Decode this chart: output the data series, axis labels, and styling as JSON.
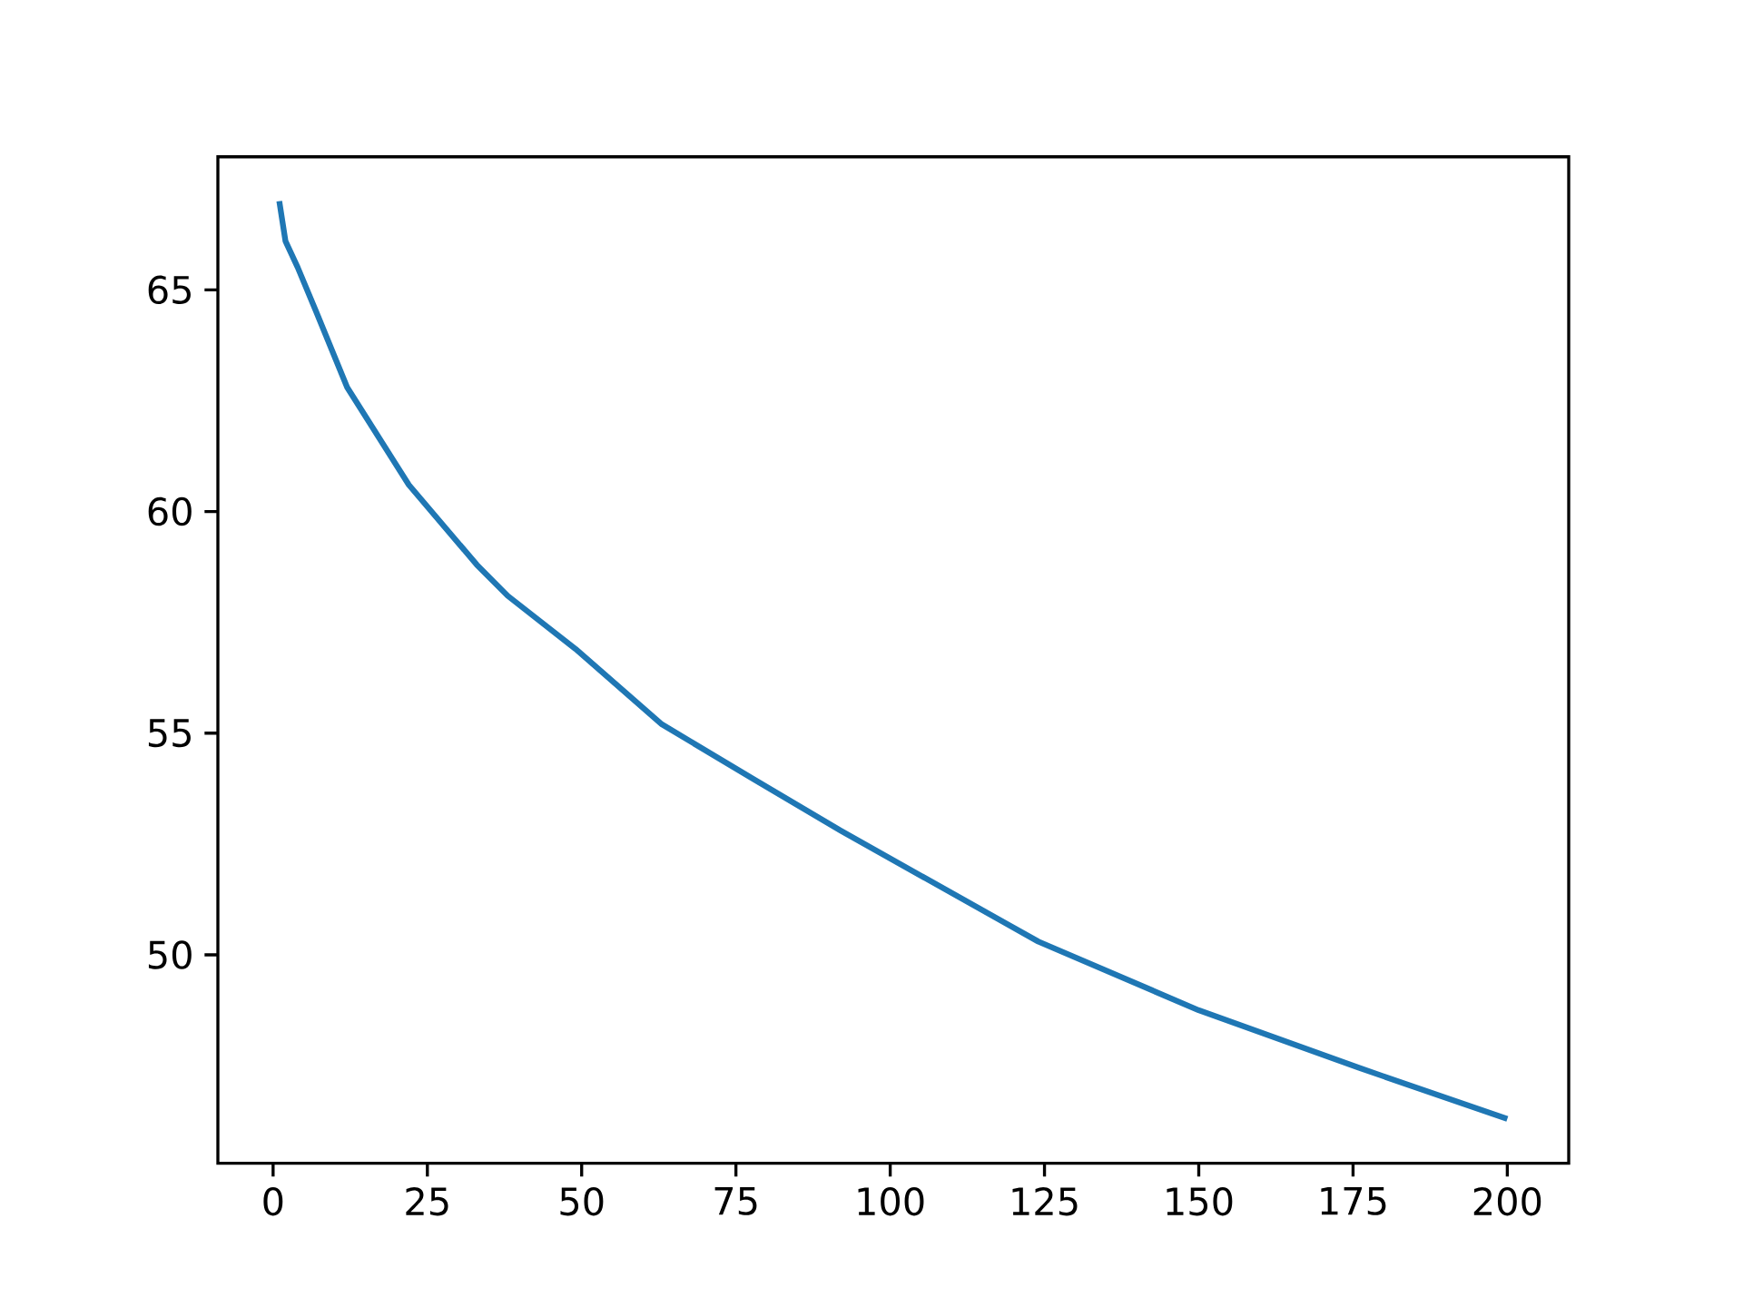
{
  "chart_data": {
    "type": "line",
    "x": [
      1,
      2,
      4,
      7,
      12,
      22,
      33,
      38,
      49,
      63,
      78,
      92,
      124,
      150,
      176,
      200
    ],
    "series": [
      {
        "color": "#1f77b4",
        "values": [
          67.0,
          66.1,
          65.5,
          64.5,
          62.8,
          60.6,
          58.8,
          58.1,
          56.9,
          55.2,
          53.95,
          52.8,
          50.3,
          48.75,
          47.45,
          46.3
        ]
      }
    ],
    "xlim": [
      -8.95,
      209.95
    ],
    "ylim": [
      45.3,
      68.0
    ],
    "xticks": [
      0,
      25,
      50,
      75,
      100,
      125,
      150,
      175,
      200
    ],
    "yticks": [
      50,
      55,
      60,
      65
    ],
    "grid": false,
    "marker": "none",
    "line_style": "solid"
  }
}
